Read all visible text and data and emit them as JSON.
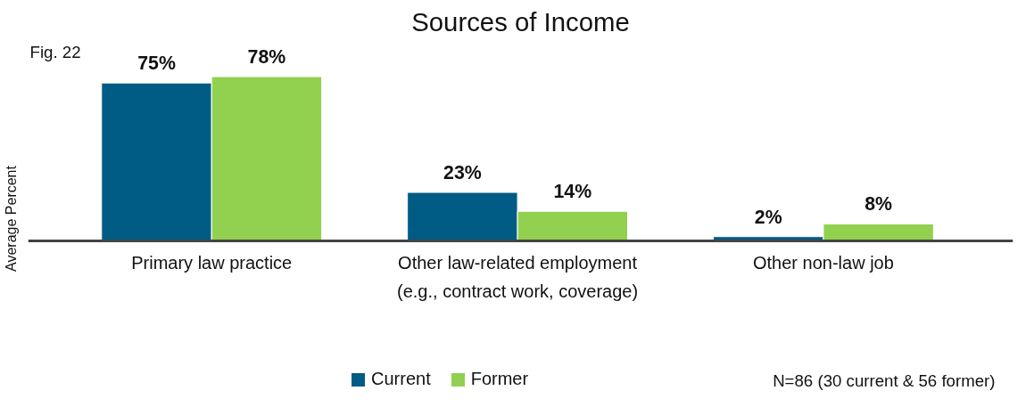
{
  "chart_data": {
    "type": "bar",
    "title": "Sources of Income",
    "ylabel": "Average Percent",
    "categories": [
      "Primary law practice",
      "Other law-related employment\n(e.g., contract work, coverage)",
      "Other non-law job"
    ],
    "series": [
      {
        "name": "Current",
        "color": "#015c85",
        "values": [
          75,
          23,
          2
        ],
        "value_labels": [
          "75%",
          "23%",
          "2%"
        ]
      },
      {
        "name": "Former",
        "color": "#92d050",
        "values": [
          78,
          14,
          8
        ],
        "value_labels": [
          "78%",
          "14%",
          "8%"
        ]
      }
    ],
    "annotations": [
      "Fig. 22",
      "N=86 (30 current & 56 former)"
    ],
    "legend": "bottom",
    "tick_labels": "x"
  }
}
